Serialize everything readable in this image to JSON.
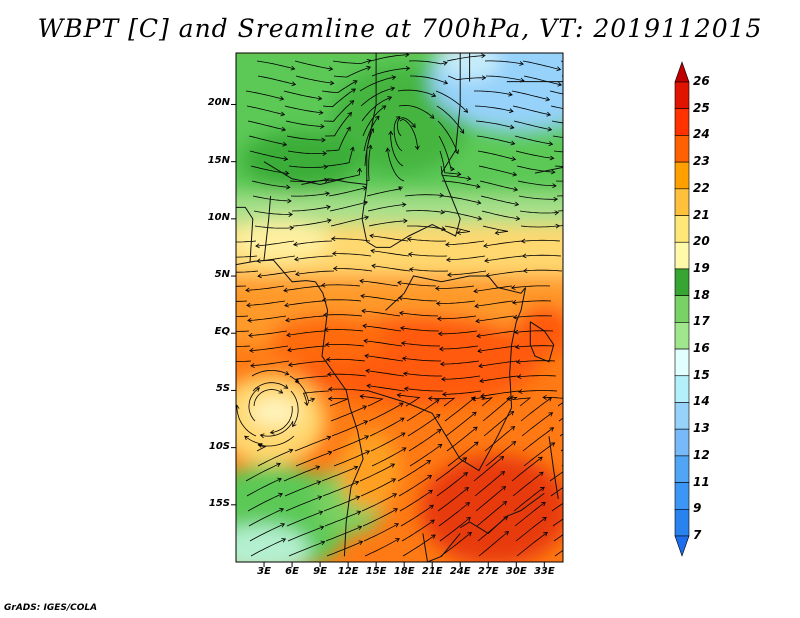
{
  "title": "WBPT [C] and Sreamline at 700hPa, VT: 2019112015",
  "credit": "GrADS: IGES/COLA",
  "map": {
    "lat_labels": [
      "20N",
      "15N",
      "10N",
      "5N",
      "EQ",
      "5S",
      "10S",
      "15S"
    ],
    "lat_values": [
      20,
      15,
      10,
      5,
      0,
      -5,
      -10,
      -15
    ],
    "lon_labels": [
      "3E",
      "6E",
      "9E",
      "12E",
      "15E",
      "18E",
      "21E",
      "24E",
      "27E",
      "30E",
      "33E"
    ],
    "lon_values": [
      3,
      6,
      9,
      12,
      15,
      18,
      21,
      24,
      27,
      30,
      33
    ],
    "lat_range": [
      -20,
      24.5
    ],
    "lon_range": [
      0,
      35
    ]
  },
  "colorbar": {
    "labels": [
      "7",
      "9",
      "11",
      "12",
      "13",
      "14",
      "15",
      "16",
      "17",
      "18",
      "19",
      "20",
      "21",
      "22",
      "23",
      "24",
      "25",
      "26"
    ],
    "colors": [
      "#1e6eeb",
      "#2882f0",
      "#3c96f5",
      "#50a5f5",
      "#78b9fa",
      "#96d2fa",
      "#b4f0fa",
      "#e1ffff",
      "#a0e68c",
      "#78d264",
      "#37a532",
      "#fffaaa",
      "#ffe878",
      "#ffc03c",
      "#ffa000",
      "#ff6000",
      "#ff3200",
      "#e11400",
      "#c00000"
    ]
  }
}
